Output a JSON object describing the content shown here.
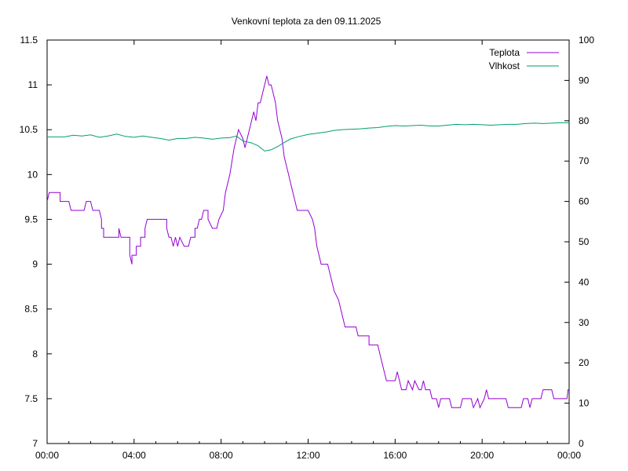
{
  "chart_data": {
    "type": "line",
    "title": "Venkovní teplota za den 09.11.2025",
    "xlabel": "",
    "ylabel": "",
    "y2label": "",
    "x_unit": "hours",
    "xlim": [
      0,
      24
    ],
    "ylim": [
      7,
      11.5
    ],
    "y2lim": [
      0,
      100
    ],
    "x_ticks": [
      {
        "value": 0,
        "label": "00:00"
      },
      {
        "value": 4,
        "label": "04:00"
      },
      {
        "value": 8,
        "label": "08:00"
      },
      {
        "value": 12,
        "label": "12:00"
      },
      {
        "value": 16,
        "label": "16:00"
      },
      {
        "value": 20,
        "label": "20:00"
      },
      {
        "value": 24,
        "label": "00:00"
      }
    ],
    "y_ticks": [
      {
        "value": 7,
        "label": "7"
      },
      {
        "value": 7.5,
        "label": "7.5"
      },
      {
        "value": 8,
        "label": "8"
      },
      {
        "value": 8.5,
        "label": "8.5"
      },
      {
        "value": 9,
        "label": "9"
      },
      {
        "value": 9.5,
        "label": "9.5"
      },
      {
        "value": 10,
        "label": "10"
      },
      {
        "value": 10.5,
        "label": "10.5"
      },
      {
        "value": 11,
        "label": "11"
      },
      {
        "value": 11.5,
        "label": "11.5"
      }
    ],
    "y2_ticks": [
      {
        "value": 0,
        "label": "0"
      },
      {
        "value": 10,
        "label": "10"
      },
      {
        "value": 20,
        "label": "20"
      },
      {
        "value": 30,
        "label": "30"
      },
      {
        "value": 40,
        "label": "40"
      },
      {
        "value": 50,
        "label": "50"
      },
      {
        "value": 60,
        "label": "60"
      },
      {
        "value": 70,
        "label": "70"
      },
      {
        "value": 80,
        "label": "80"
      },
      {
        "value": 90,
        "label": "90"
      },
      {
        "value": 100,
        "label": "100"
      }
    ],
    "grid": false,
    "legend_position": "top-right",
    "series": [
      {
        "name": "Teplota",
        "axis": "left",
        "color": "#9400d3",
        "points": [
          [
            0.0,
            9.7
          ],
          [
            0.1,
            9.8
          ],
          [
            0.6,
            9.8
          ],
          [
            0.6,
            9.7
          ],
          [
            1.0,
            9.7
          ],
          [
            1.1,
            9.6
          ],
          [
            1.7,
            9.6
          ],
          [
            1.8,
            9.7
          ],
          [
            2.0,
            9.7
          ],
          [
            2.1,
            9.6
          ],
          [
            2.4,
            9.6
          ],
          [
            2.5,
            9.5
          ],
          [
            2.5,
            9.4
          ],
          [
            2.6,
            9.4
          ],
          [
            2.6,
            9.3
          ],
          [
            3.3,
            9.3
          ],
          [
            3.3,
            9.4
          ],
          [
            3.4,
            9.3
          ],
          [
            3.8,
            9.3
          ],
          [
            3.8,
            9.1
          ],
          [
            3.9,
            9.0
          ],
          [
            3.9,
            9.1
          ],
          [
            4.1,
            9.1
          ],
          [
            4.1,
            9.2
          ],
          [
            4.3,
            9.2
          ],
          [
            4.3,
            9.3
          ],
          [
            4.5,
            9.3
          ],
          [
            4.5,
            9.4
          ],
          [
            4.6,
            9.5
          ],
          [
            5.5,
            9.5
          ],
          [
            5.5,
            9.4
          ],
          [
            5.6,
            9.3
          ],
          [
            5.7,
            9.3
          ],
          [
            5.8,
            9.2
          ],
          [
            5.9,
            9.3
          ],
          [
            6.0,
            9.2
          ],
          [
            6.1,
            9.3
          ],
          [
            6.3,
            9.2
          ],
          [
            6.5,
            9.2
          ],
          [
            6.6,
            9.3
          ],
          [
            6.8,
            9.3
          ],
          [
            6.8,
            9.4
          ],
          [
            6.9,
            9.4
          ],
          [
            7.0,
            9.5
          ],
          [
            7.1,
            9.5
          ],
          [
            7.2,
            9.6
          ],
          [
            7.4,
            9.6
          ],
          [
            7.4,
            9.5
          ],
          [
            7.6,
            9.4
          ],
          [
            7.8,
            9.4
          ],
          [
            7.9,
            9.5
          ],
          [
            8.1,
            9.6
          ],
          [
            8.2,
            9.8
          ],
          [
            8.4,
            10.0
          ],
          [
            8.6,
            10.3
          ],
          [
            8.7,
            10.4
          ],
          [
            8.8,
            10.5
          ],
          [
            9.0,
            10.4
          ],
          [
            9.1,
            10.3
          ],
          [
            9.2,
            10.4
          ],
          [
            9.3,
            10.5
          ],
          [
            9.4,
            10.6
          ],
          [
            9.5,
            10.7
          ],
          [
            9.6,
            10.6
          ],
          [
            9.7,
            10.8
          ],
          [
            9.8,
            10.8
          ],
          [
            9.9,
            10.9
          ],
          [
            10.0,
            11.0
          ],
          [
            10.1,
            11.1
          ],
          [
            10.2,
            11.0
          ],
          [
            10.3,
            11.0
          ],
          [
            10.4,
            10.9
          ],
          [
            10.5,
            10.8
          ],
          [
            10.6,
            10.6
          ],
          [
            10.7,
            10.5
          ],
          [
            10.8,
            10.4
          ],
          [
            10.9,
            10.2
          ],
          [
            11.0,
            10.1
          ],
          [
            11.1,
            10.0
          ],
          [
            11.2,
            9.9
          ],
          [
            11.3,
            9.8
          ],
          [
            11.4,
            9.7
          ],
          [
            11.5,
            9.6
          ],
          [
            12.0,
            9.6
          ],
          [
            12.2,
            9.5
          ],
          [
            12.3,
            9.4
          ],
          [
            12.4,
            9.2
          ],
          [
            12.5,
            9.1
          ],
          [
            12.6,
            9.0
          ],
          [
            12.9,
            9.0
          ],
          [
            13.0,
            8.9
          ],
          [
            13.1,
            8.8
          ],
          [
            13.2,
            8.7
          ],
          [
            13.4,
            8.6
          ],
          [
            13.5,
            8.5
          ],
          [
            13.6,
            8.4
          ],
          [
            13.7,
            8.3
          ],
          [
            14.2,
            8.3
          ],
          [
            14.3,
            8.2
          ],
          [
            14.8,
            8.2
          ],
          [
            14.8,
            8.1
          ],
          [
            15.2,
            8.1
          ],
          [
            15.3,
            8.0
          ],
          [
            15.4,
            7.9
          ],
          [
            15.5,
            7.8
          ],
          [
            15.6,
            7.7
          ],
          [
            16.0,
            7.7
          ],
          [
            16.1,
            7.8
          ],
          [
            16.2,
            7.7
          ],
          [
            16.3,
            7.6
          ],
          [
            16.5,
            7.6
          ],
          [
            16.6,
            7.7
          ],
          [
            16.8,
            7.6
          ],
          [
            16.9,
            7.7
          ],
          [
            17.1,
            7.6
          ],
          [
            17.2,
            7.6
          ],
          [
            17.3,
            7.7
          ],
          [
            17.4,
            7.6
          ],
          [
            17.6,
            7.6
          ],
          [
            17.7,
            7.5
          ],
          [
            17.9,
            7.5
          ],
          [
            18.0,
            7.4
          ],
          [
            18.1,
            7.5
          ],
          [
            18.5,
            7.5
          ],
          [
            18.6,
            7.4
          ],
          [
            19.0,
            7.4
          ],
          [
            19.1,
            7.5
          ],
          [
            19.5,
            7.5
          ],
          [
            19.6,
            7.4
          ],
          [
            19.8,
            7.5
          ],
          [
            19.9,
            7.4
          ],
          [
            20.1,
            7.5
          ],
          [
            20.2,
            7.6
          ],
          [
            20.3,
            7.5
          ],
          [
            21.1,
            7.5
          ],
          [
            21.2,
            7.4
          ],
          [
            21.8,
            7.4
          ],
          [
            21.9,
            7.5
          ],
          [
            22.1,
            7.5
          ],
          [
            22.2,
            7.4
          ],
          [
            22.3,
            7.5
          ],
          [
            22.7,
            7.5
          ],
          [
            22.8,
            7.6
          ],
          [
            23.2,
            7.6
          ],
          [
            23.3,
            7.5
          ],
          [
            23.9,
            7.5
          ],
          [
            23.95,
            7.6
          ],
          [
            24.0,
            7.6
          ]
        ]
      },
      {
        "name": "Vlhkost",
        "axis": "right",
        "color": "#009e73",
        "points": [
          [
            0.0,
            76.0
          ],
          [
            0.8,
            76.0
          ],
          [
            1.2,
            76.4
          ],
          [
            1.6,
            76.2
          ],
          [
            2.0,
            76.5
          ],
          [
            2.4,
            75.9
          ],
          [
            2.8,
            76.2
          ],
          [
            3.2,
            76.7
          ],
          [
            3.6,
            76.1
          ],
          [
            4.0,
            75.9
          ],
          [
            4.4,
            76.2
          ],
          [
            4.8,
            75.9
          ],
          [
            5.2,
            75.6
          ],
          [
            5.6,
            75.2
          ],
          [
            6.0,
            75.6
          ],
          [
            6.4,
            75.6
          ],
          [
            6.8,
            75.9
          ],
          [
            7.2,
            75.7
          ],
          [
            7.6,
            75.4
          ],
          [
            8.0,
            75.7
          ],
          [
            8.4,
            75.8
          ],
          [
            8.7,
            76.2
          ],
          [
            9.0,
            75.0
          ],
          [
            9.4,
            74.5
          ],
          [
            9.7,
            73.8
          ],
          [
            10.0,
            72.5
          ],
          [
            10.3,
            72.8
          ],
          [
            10.6,
            73.6
          ],
          [
            10.9,
            74.6
          ],
          [
            11.2,
            75.5
          ],
          [
            11.6,
            76.1
          ],
          [
            12.0,
            76.6
          ],
          [
            12.4,
            76.9
          ],
          [
            12.8,
            77.2
          ],
          [
            13.2,
            77.6
          ],
          [
            13.6,
            77.8
          ],
          [
            14.0,
            77.9
          ],
          [
            14.4,
            78.0
          ],
          [
            14.8,
            78.2
          ],
          [
            15.2,
            78.3
          ],
          [
            15.6,
            78.6
          ],
          [
            16.0,
            78.8
          ],
          [
            16.4,
            78.7
          ],
          [
            16.8,
            78.8
          ],
          [
            17.2,
            78.9
          ],
          [
            17.6,
            78.7
          ],
          [
            18.0,
            78.7
          ],
          [
            18.4,
            78.9
          ],
          [
            18.8,
            79.1
          ],
          [
            19.2,
            79.0
          ],
          [
            19.6,
            79.1
          ],
          [
            20.0,
            79.0
          ],
          [
            20.4,
            78.9
          ],
          [
            20.8,
            79.0
          ],
          [
            21.2,
            79.1
          ],
          [
            21.6,
            79.1
          ],
          [
            22.0,
            79.3
          ],
          [
            22.4,
            79.4
          ],
          [
            22.8,
            79.3
          ],
          [
            23.2,
            79.4
          ],
          [
            23.6,
            79.5
          ],
          [
            24.0,
            79.5
          ]
        ]
      }
    ]
  }
}
